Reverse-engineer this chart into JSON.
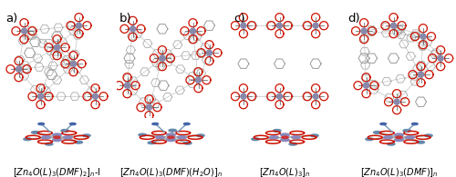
{
  "panels": [
    "a)",
    "b)",
    "c)",
    "d)"
  ],
  "math_labels": [
    "$[Zn_4O(L)_3(DMF)_2]_n$-I",
    "$[Zn_4O(L)_3(DMF)(H_2O)]_n$",
    "$[Zn_4O(L)_3]_n$",
    "$[Zn_4O(L)_3(DMF)]_n$"
  ],
  "background_color": "#ffffff",
  "label_fontsize": 7.0,
  "panel_label_fontsize": 9.5
}
